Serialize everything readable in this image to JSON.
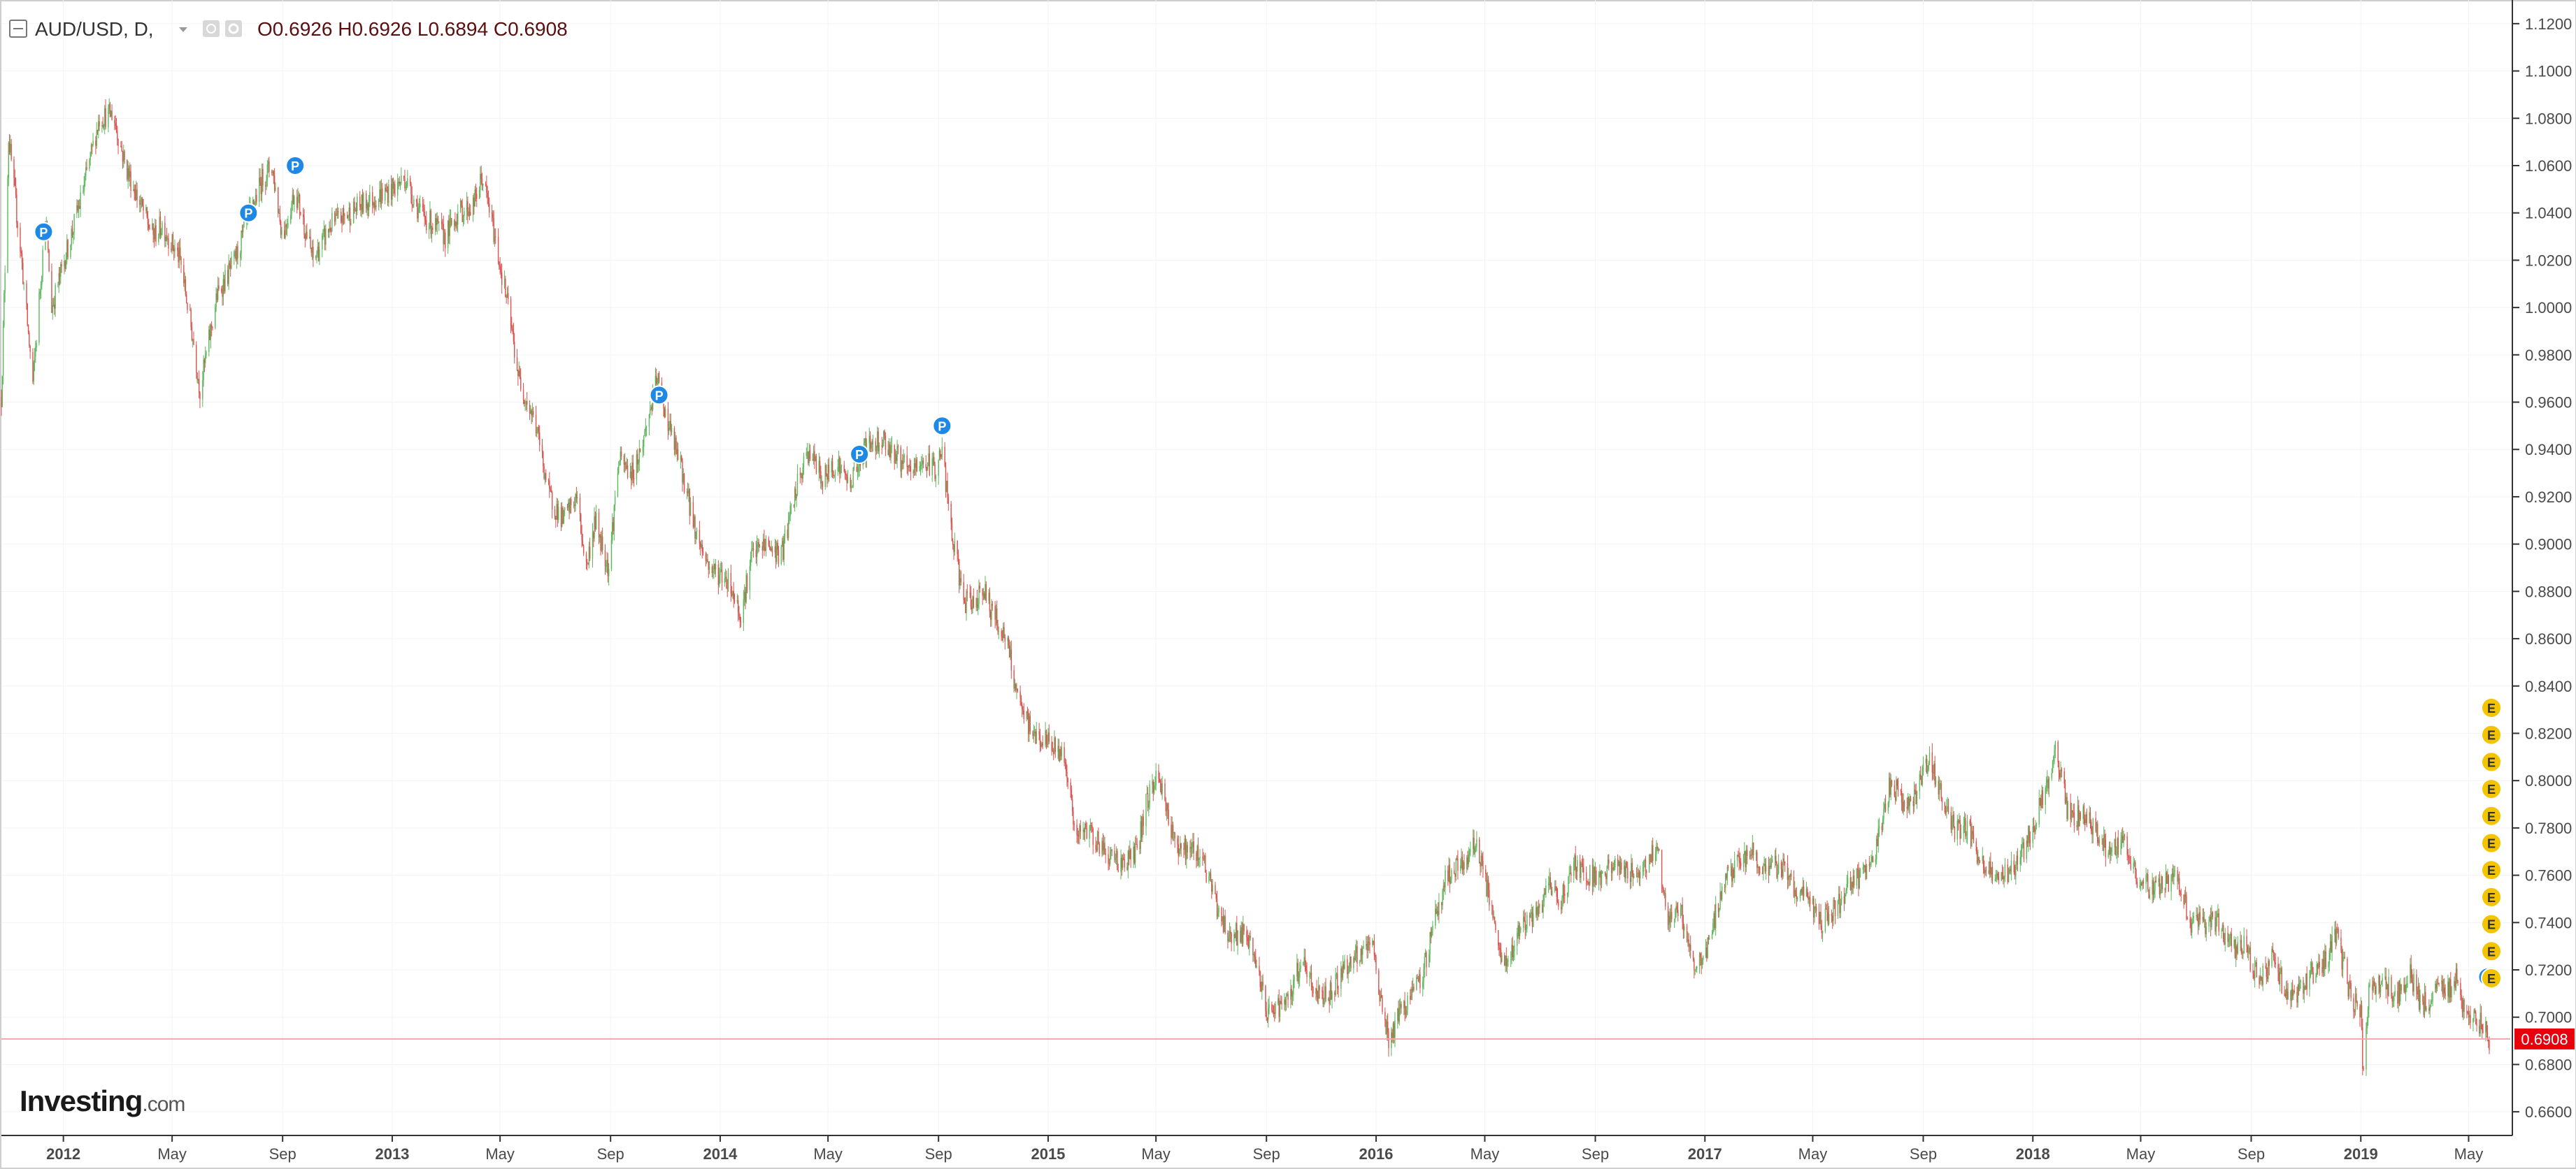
{
  "legend": {
    "symbol": "AUD/USD, D,",
    "open_label": "O",
    "open": "0.6926",
    "high_label": "H",
    "high": "0.6926",
    "low_label": "L",
    "low": "0.6894",
    "close_label": "C",
    "close": "0.6908"
  },
  "branding": {
    "logo_main": "Investing",
    "logo_suffix": ".com"
  },
  "price_badge": "0.6908",
  "colors": {
    "up": "#5cb85c",
    "down": "#d9534f",
    "price_line": "#f4a6ab",
    "badge": "#e8000d",
    "pivot_marker": "#1e88e5",
    "event_marker": "#f5c400"
  },
  "icons": [
    "collapse-icon",
    "dropdown-arrow-icon",
    "eye-icon",
    "gear-icon"
  ],
  "chart_data": {
    "type": "candlestick",
    "title": "AUD/USD, D,",
    "ylim": [
      0.65,
      1.13
    ],
    "y_ticks": [
      "0.6600",
      "0.6800",
      "0.7000",
      "0.7200",
      "0.7400",
      "0.7600",
      "0.7800",
      "0.8000",
      "0.8200",
      "0.8400",
      "0.8600",
      "0.8800",
      "0.9000",
      "0.9200",
      "0.9400",
      "0.9600",
      "0.9800",
      "1.0000",
      "1.0200",
      "1.0400",
      "1.0600",
      "1.0800",
      "1.1000",
      "1.1200"
    ],
    "x_ticks": [
      {
        "label": "2012",
        "date": "2012-01",
        "major": true
      },
      {
        "label": "May",
        "date": "2012-05",
        "major": false
      },
      {
        "label": "Sep",
        "date": "2012-09",
        "major": false
      },
      {
        "label": "2013",
        "date": "2013-01",
        "major": true
      },
      {
        "label": "May",
        "date": "2013-05",
        "major": false
      },
      {
        "label": "Sep",
        "date": "2013-09",
        "major": false
      },
      {
        "label": "2014",
        "date": "2014-01",
        "major": true
      },
      {
        "label": "May",
        "date": "2014-05",
        "major": false
      },
      {
        "label": "Sep",
        "date": "2014-09",
        "major": false
      },
      {
        "label": "2015",
        "date": "2015-01",
        "major": true
      },
      {
        "label": "May",
        "date": "2015-05",
        "major": false
      },
      {
        "label": "Sep",
        "date": "2015-09",
        "major": false
      },
      {
        "label": "2016",
        "date": "2016-01",
        "major": true
      },
      {
        "label": "May",
        "date": "2016-05",
        "major": false
      },
      {
        "label": "Sep",
        "date": "2016-09",
        "major": false
      },
      {
        "label": "2017",
        "date": "2017-01",
        "major": true
      },
      {
        "label": "May",
        "date": "2017-05",
        "major": false
      },
      {
        "label": "Sep",
        "date": "2017-09",
        "major": false
      },
      {
        "label": "2018",
        "date": "2018-01",
        "major": true
      },
      {
        "label": "May",
        "date": "2018-05",
        "major": false
      },
      {
        "label": "Sep",
        "date": "2018-09",
        "major": false
      },
      {
        "label": "2019",
        "date": "2019-01",
        "major": true
      },
      {
        "label": "May",
        "date": "2019-05",
        "major": false
      }
    ],
    "x_range": [
      "2011-10-24",
      "2019-05-24"
    ],
    "last_close": 0.6908,
    "series": [
      {
        "values": [
          [
            "2011-10-24",
            0.962
          ],
          [
            "2011-11-01",
            1.072
          ],
          [
            "2011-11-15",
            1.022
          ],
          [
            "2011-11-28",
            0.968
          ],
          [
            "2011-12-12",
            1.038
          ],
          [
            "2011-12-19",
            1.0
          ],
          [
            "2012-01-02",
            1.02
          ],
          [
            "2012-01-20",
            1.045
          ],
          [
            "2012-02-10",
            1.08
          ],
          [
            "2012-02-25",
            1.082
          ],
          [
            "2012-03-10",
            1.06
          ],
          [
            "2012-03-20",
            1.05
          ],
          [
            "2012-04-10",
            1.03
          ],
          [
            "2012-04-20",
            1.035
          ],
          [
            "2012-05-10",
            1.02
          ],
          [
            "2012-05-25",
            0.985
          ],
          [
            "2012-06-01",
            0.965
          ],
          [
            "2012-06-20",
            1.005
          ],
          [
            "2012-07-10",
            1.02
          ],
          [
            "2012-07-27",
            1.04
          ],
          [
            "2012-08-10",
            1.055
          ],
          [
            "2012-08-20",
            1.06
          ],
          [
            "2012-09-01",
            1.03
          ],
          [
            "2012-09-15",
            1.05
          ],
          [
            "2012-10-05",
            1.02
          ],
          [
            "2012-10-25",
            1.035
          ],
          [
            "2012-11-15",
            1.04
          ],
          [
            "2012-12-05",
            1.045
          ],
          [
            "2013-01-02",
            1.05
          ],
          [
            "2013-01-15",
            1.055
          ],
          [
            "2013-02-01",
            1.04
          ],
          [
            "2013-03-01",
            1.03
          ],
          [
            "2013-03-15",
            1.04
          ],
          [
            "2013-04-01",
            1.043
          ],
          [
            "2013-04-11",
            1.055
          ],
          [
            "2013-04-20",
            1.04
          ],
          [
            "2013-05-10",
            1.0
          ],
          [
            "2013-05-22",
            0.97
          ],
          [
            "2013-06-10",
            0.95
          ],
          [
            "2013-06-25",
            0.92
          ],
          [
            "2013-07-10",
            0.91
          ],
          [
            "2013-07-25",
            0.92
          ],
          [
            "2013-08-05",
            0.89
          ],
          [
            "2013-08-15",
            0.91
          ],
          [
            "2013-08-30",
            0.89
          ],
          [
            "2013-09-10",
            0.935
          ],
          [
            "2013-09-25",
            0.93
          ],
          [
            "2013-10-05",
            0.94
          ],
          [
            "2013-10-23",
            0.97
          ],
          [
            "2013-11-05",
            0.95
          ],
          [
            "2013-11-20",
            0.93
          ],
          [
            "2013-12-05",
            0.905
          ],
          [
            "2013-12-20",
            0.89
          ],
          [
            "2014-01-10",
            0.885
          ],
          [
            "2014-01-24",
            0.87
          ],
          [
            "2014-02-05",
            0.895
          ],
          [
            "2014-02-20",
            0.9
          ],
          [
            "2014-03-10",
            0.895
          ],
          [
            "2014-03-28",
            0.925
          ],
          [
            "2014-04-10",
            0.94
          ],
          [
            "2014-04-25",
            0.927
          ],
          [
            "2014-05-10",
            0.935
          ],
          [
            "2014-05-25",
            0.925
          ],
          [
            "2014-06-10",
            0.94
          ],
          [
            "2014-06-30",
            0.945
          ],
          [
            "2014-07-15",
            0.938
          ],
          [
            "2014-07-30",
            0.93
          ],
          [
            "2014-08-15",
            0.935
          ],
          [
            "2014-08-30",
            0.932
          ],
          [
            "2014-09-05",
            0.94
          ],
          [
            "2014-09-15",
            0.905
          ],
          [
            "2014-09-30",
            0.875
          ],
          [
            "2014-10-10",
            0.875
          ],
          [
            "2014-10-20",
            0.882
          ],
          [
            "2014-11-01",
            0.87
          ],
          [
            "2014-11-15",
            0.86
          ],
          [
            "2014-12-01",
            0.83
          ],
          [
            "2014-12-15",
            0.82
          ],
          [
            "2015-01-05",
            0.815
          ],
          [
            "2015-01-20",
            0.81
          ],
          [
            "2015-02-01",
            0.775
          ],
          [
            "2015-02-15",
            0.78
          ],
          [
            "2015-03-05",
            0.77
          ],
          [
            "2015-03-25",
            0.765
          ],
          [
            "2015-04-10",
            0.77
          ],
          [
            "2015-04-20",
            0.79
          ],
          [
            "2015-05-01",
            0.802
          ],
          [
            "2015-05-10",
            0.795
          ],
          [
            "2015-05-20",
            0.775
          ],
          [
            "2015-06-05",
            0.77
          ],
          [
            "2015-06-20",
            0.77
          ],
          [
            "2015-07-05",
            0.75
          ],
          [
            "2015-07-20",
            0.735
          ],
          [
            "2015-08-05",
            0.735
          ],
          [
            "2015-08-20",
            0.725
          ],
          [
            "2015-09-01",
            0.7
          ],
          [
            "2015-09-10",
            0.705
          ],
          [
            "2015-09-25",
            0.705
          ],
          [
            "2015-10-10",
            0.725
          ],
          [
            "2015-10-25",
            0.71
          ],
          [
            "2015-11-10",
            0.71
          ],
          [
            "2015-11-25",
            0.72
          ],
          [
            "2015-12-10",
            0.725
          ],
          [
            "2015-12-28",
            0.73
          ],
          [
            "2016-01-10",
            0.7
          ],
          [
            "2016-01-15",
            0.69
          ],
          [
            "2016-02-01",
            0.705
          ],
          [
            "2016-02-20",
            0.715
          ],
          [
            "2016-03-05",
            0.74
          ],
          [
            "2016-03-20",
            0.76
          ],
          [
            "2016-04-10",
            0.765
          ],
          [
            "2016-04-20",
            0.775
          ],
          [
            "2016-05-01",
            0.76
          ],
          [
            "2016-05-15",
            0.73
          ],
          [
            "2016-05-25",
            0.72
          ],
          [
            "2016-06-10",
            0.74
          ],
          [
            "2016-06-25",
            0.74
          ],
          [
            "2016-07-10",
            0.755
          ],
          [
            "2016-07-25",
            0.75
          ],
          [
            "2016-08-10",
            0.765
          ],
          [
            "2016-08-25",
            0.76
          ],
          [
            "2016-09-10",
            0.76
          ],
          [
            "2016-09-25",
            0.765
          ],
          [
            "2016-10-10",
            0.76
          ],
          [
            "2016-10-30",
            0.765
          ],
          [
            "2016-11-09",
            0.775
          ],
          [
            "2016-11-20",
            0.74
          ],
          [
            "2016-12-05",
            0.745
          ],
          [
            "2016-12-20",
            0.72
          ],
          [
            "2017-01-05",
            0.73
          ],
          [
            "2017-01-20",
            0.755
          ],
          [
            "2017-02-05",
            0.765
          ],
          [
            "2017-02-25",
            0.77
          ],
          [
            "2017-03-10",
            0.76
          ],
          [
            "2017-03-25",
            0.765
          ],
          [
            "2017-04-10",
            0.755
          ],
          [
            "2017-04-25",
            0.75
          ],
          [
            "2017-05-10",
            0.74
          ],
          [
            "2017-05-25",
            0.745
          ],
          [
            "2017-06-10",
            0.755
          ],
          [
            "2017-06-25",
            0.76
          ],
          [
            "2017-07-10",
            0.77
          ],
          [
            "2017-07-27",
            0.8
          ],
          [
            "2017-08-10",
            0.79
          ],
          [
            "2017-08-25",
            0.795
          ],
          [
            "2017-09-08",
            0.81
          ],
          [
            "2017-09-20",
            0.795
          ],
          [
            "2017-10-05",
            0.78
          ],
          [
            "2017-10-20",
            0.78
          ],
          [
            "2017-11-05",
            0.765
          ],
          [
            "2017-11-20",
            0.76
          ],
          [
            "2017-12-05",
            0.76
          ],
          [
            "2017-12-20",
            0.77
          ],
          [
            "2018-01-05",
            0.785
          ],
          [
            "2018-01-20",
            0.8
          ],
          [
            "2018-01-26",
            0.812
          ],
          [
            "2018-02-10",
            0.785
          ],
          [
            "2018-02-25",
            0.785
          ],
          [
            "2018-03-10",
            0.78
          ],
          [
            "2018-03-25",
            0.77
          ],
          [
            "2018-04-10",
            0.775
          ],
          [
            "2018-04-25",
            0.76
          ],
          [
            "2018-05-10",
            0.755
          ],
          [
            "2018-05-25",
            0.755
          ],
          [
            "2018-06-10",
            0.76
          ],
          [
            "2018-06-25",
            0.74
          ],
          [
            "2018-07-10",
            0.74
          ],
          [
            "2018-07-25",
            0.74
          ],
          [
            "2018-08-10",
            0.73
          ],
          [
            "2018-08-25",
            0.73
          ],
          [
            "2018-09-10",
            0.715
          ],
          [
            "2018-09-25",
            0.725
          ],
          [
            "2018-10-10",
            0.71
          ],
          [
            "2018-10-25",
            0.71
          ],
          [
            "2018-11-10",
            0.72
          ],
          [
            "2018-11-25",
            0.725
          ],
          [
            "2018-12-05",
            0.735
          ],
          [
            "2018-12-20",
            0.71
          ],
          [
            "2019-01-02",
            0.7
          ],
          [
            "2019-01-03",
            0.675
          ],
          [
            "2019-01-10",
            0.71
          ],
          [
            "2019-01-25",
            0.715
          ],
          [
            "2019-02-10",
            0.71
          ],
          [
            "2019-02-25",
            0.718
          ],
          [
            "2019-03-10",
            0.705
          ],
          [
            "2019-03-25",
            0.71
          ],
          [
            "2019-04-10",
            0.712
          ],
          [
            "2019-04-17",
            0.718
          ],
          [
            "2019-04-25",
            0.705
          ],
          [
            "2019-05-10",
            0.7
          ],
          [
            "2019-05-24",
            0.6908
          ]
        ]
      }
    ],
    "pivot_markers": [
      {
        "date": "2011-12-10",
        "value": 1.032,
        "label": "P"
      },
      {
        "date": "2012-07-25",
        "value": 1.04,
        "label": "P"
      },
      {
        "date": "2012-09-15",
        "value": 1.06,
        "label": "P"
      },
      {
        "date": "2013-10-25",
        "value": 0.963,
        "label": "P"
      },
      {
        "date": "2014-06-05",
        "value": 0.938,
        "label": "P"
      },
      {
        "date": "2014-09-05",
        "value": 0.95,
        "label": "P"
      },
      {
        "date": "2019-05-22",
        "value": 0.717,
        "label": ""
      }
    ],
    "event_markers": [
      "E",
      "E",
      "E",
      "E",
      "E",
      "E",
      "E",
      "E",
      "E",
      "E",
      "E"
    ]
  }
}
